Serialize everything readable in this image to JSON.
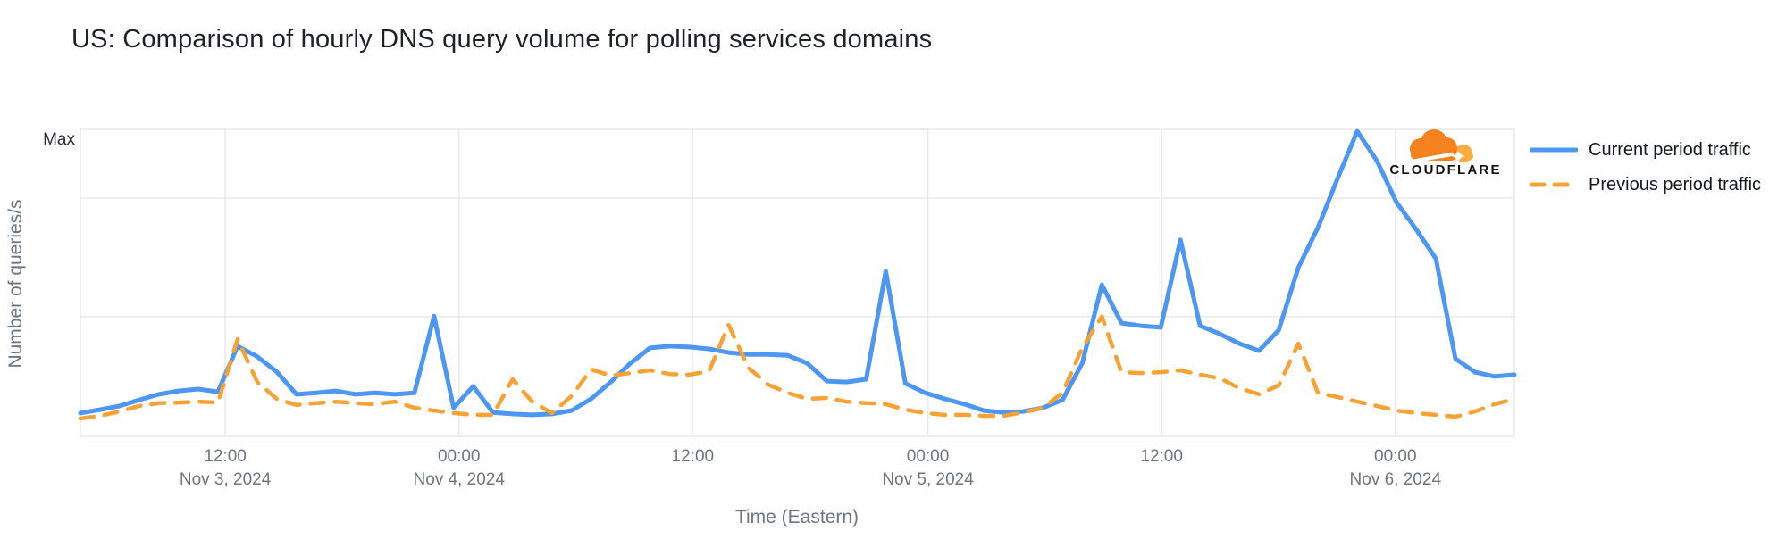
{
  "title": "US: Comparison of hourly DNS query volume for polling services domains",
  "logo": {
    "text": "CLOUDFLARE"
  },
  "colors": {
    "current_period": "#4D96F2",
    "previous_period": "#F7A234",
    "grid": "#e9e9e9",
    "axis_text": "#6d7680",
    "title_text": "#1e2126",
    "logo_orange": "#F6821F",
    "logo_orange_light": "#FBAD41"
  },
  "chart_data": {
    "type": "line",
    "title": "US: Comparison of hourly DNS query volume for polling services domains",
    "xlabel": "Time (Eastern)",
    "ylabel": "Number of queries/s",
    "y_max_label": "Max",
    "grid": "on",
    "legend_position": "top-right",
    "ylim": [
      0,
      1
    ],
    "y_note": "values normalized: 1.0 = Max line at top of plot, 0 = bottom axis",
    "x_note": "hourly samples from ~05:00 ET Nov 3, 2024 to ~06:00 ET Nov 6, 2024",
    "x_ticks": [
      {
        "time": "12:00",
        "date": "Nov 3, 2024"
      },
      {
        "time": "00:00",
        "date": "Nov 4, 2024"
      },
      {
        "time": "12:00",
        "date": ""
      },
      {
        "time": "00:00",
        "date": "Nov 5, 2024"
      },
      {
        "time": "12:00",
        "date": ""
      },
      {
        "time": "00:00",
        "date": "Nov 6, 2024"
      }
    ],
    "x_tick_positions": [
      0.101,
      0.264,
      0.427,
      0.591,
      0.754,
      0.917
    ],
    "h_grid_values": [
      0.39,
      0.776
    ],
    "series": [
      {
        "name": "Current period traffic",
        "style": "solid",
        "color": "#4D96F2",
        "values": [
          0.076,
          0.087,
          0.099,
          0.119,
          0.137,
          0.148,
          0.154,
          0.145,
          0.294,
          0.26,
          0.21,
          0.137,
          0.142,
          0.148,
          0.137,
          0.142,
          0.137,
          0.142,
          0.392,
          0.093,
          0.163,
          0.078,
          0.073,
          0.07,
          0.073,
          0.084,
          0.122,
          0.177,
          0.238,
          0.288,
          0.294,
          0.291,
          0.285,
          0.273,
          0.267,
          0.267,
          0.264,
          0.238,
          0.18,
          0.177,
          0.186,
          0.538,
          0.172,
          0.142,
          0.122,
          0.105,
          0.084,
          0.078,
          0.081,
          0.093,
          0.119,
          0.238,
          0.494,
          0.369,
          0.36,
          0.355,
          0.64,
          0.36,
          0.334,
          0.302,
          0.279,
          0.346,
          0.55,
          0.68,
          0.84,
          0.994,
          0.898,
          0.762,
          0.674,
          0.579,
          0.253,
          0.209,
          0.195,
          0.201
        ]
      },
      {
        "name": "Previous period traffic",
        "style": "dashed",
        "color": "#F7A234",
        "values": [
          0.058,
          0.067,
          0.081,
          0.099,
          0.108,
          0.11,
          0.113,
          0.11,
          0.317,
          0.177,
          0.122,
          0.102,
          0.108,
          0.113,
          0.108,
          0.105,
          0.113,
          0.093,
          0.084,
          0.076,
          0.07,
          0.07,
          0.186,
          0.113,
          0.076,
          0.131,
          0.218,
          0.198,
          0.206,
          0.215,
          0.203,
          0.201,
          0.212,
          0.363,
          0.224,
          0.169,
          0.142,
          0.122,
          0.125,
          0.113,
          0.108,
          0.105,
          0.087,
          0.076,
          0.07,
          0.07,
          0.067,
          0.067,
          0.078,
          0.093,
          0.142,
          0.288,
          0.39,
          0.209,
          0.206,
          0.209,
          0.215,
          0.201,
          0.189,
          0.157,
          0.137,
          0.166,
          0.302,
          0.142,
          0.128,
          0.113,
          0.099,
          0.084,
          0.076,
          0.07,
          0.064,
          0.081,
          0.105,
          0.122
        ]
      }
    ]
  }
}
